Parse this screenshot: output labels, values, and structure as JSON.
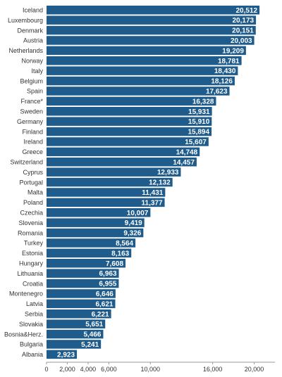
{
  "chart_data": {
    "type": "bar",
    "orientation": "horizontal",
    "categories": [
      "Iceland",
      "Luxembourg",
      "Denmark",
      "Austria",
      "Netherlands",
      "Norway",
      "Italy",
      "Belgium",
      "Spain",
      "France*",
      "Sweden",
      "Germany",
      "Finland",
      "Ireland",
      "Greece",
      "Switzerland",
      "Cyprus",
      "Portugal",
      "Malta",
      "Poland",
      "Czechia",
      "Slovenia",
      "Romania",
      "Turkey",
      "Estonia",
      "Hungary",
      "Lithuania",
      "Croatia",
      "Montenegro",
      "Latvia",
      "Serbia",
      "Slovakia",
      "Bosnia&Herz.",
      "Bulgaria",
      "Albania"
    ],
    "values": [
      20512,
      20173,
      20151,
      20003,
      19209,
      18781,
      18430,
      18126,
      17623,
      16328,
      15931,
      15910,
      15894,
      15607,
      14748,
      14457,
      12933,
      12132,
      11431,
      11377,
      10007,
      9419,
      9326,
      8564,
      8163,
      7608,
      6963,
      6955,
      6646,
      6621,
      6221,
      5651,
      5466,
      5241,
      2923
    ],
    "value_labels": [
      "20,512",
      "20,173",
      "20,151",
      "20,003",
      "19,209",
      "18,781",
      "18,430",
      "18,126",
      "17,623",
      "16,328",
      "15,931",
      "15,910",
      "15,894",
      "15,607",
      "14,748",
      "14,457",
      "12,933",
      "12,132",
      "11,431",
      "11,377",
      "10,007",
      "9,419",
      "9,326",
      "8,564",
      "8,163",
      "7,608",
      "6,963",
      "6,955",
      "6,646",
      "6,621",
      "6,221",
      "5,651",
      "5,466",
      "5,241",
      "2,923"
    ],
    "xticks": [
      {
        "value": 0,
        "label": "0"
      },
      {
        "value": 2000,
        "label": "2,000"
      },
      {
        "value": 4000,
        "label": "4,000"
      },
      {
        "value": 6000,
        "label": "6,000"
      },
      {
        "value": 10000,
        "label": "10,000"
      },
      {
        "value": 16000,
        "label": "16,000"
      },
      {
        "value": 20000,
        "label": "20,000"
      }
    ],
    "xlim": [
      0,
      22000
    ],
    "grid": false,
    "legend": "none",
    "bar_color": "#1f5c8b"
  }
}
